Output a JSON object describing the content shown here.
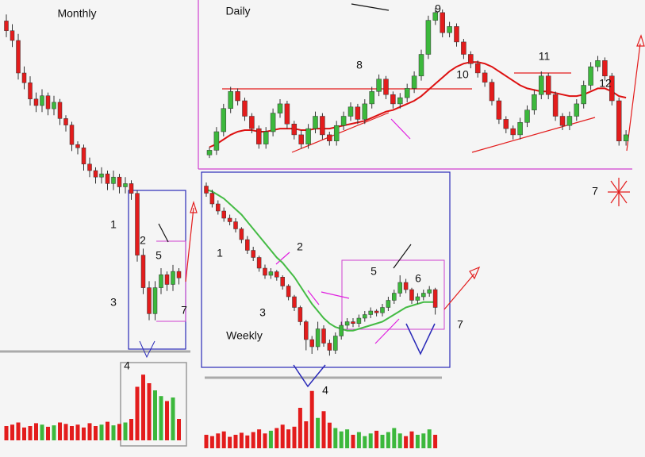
{
  "chart_data": [
    {
      "type": "candlestick",
      "title": "Monthly",
      "ylim": [
        0,
        100
      ],
      "volume_lim": [
        0,
        100
      ],
      "up_color": "#3cb83c",
      "down_color": "#e31c1c",
      "ohlc": [
        [
          96,
          98,
          91,
          93
        ],
        [
          93,
          95,
          88,
          90
        ],
        [
          90,
          92,
          78,
          80
        ],
        [
          80,
          82,
          75,
          77
        ],
        [
          77,
          79,
          70,
          72
        ],
        [
          72,
          74,
          68,
          70
        ],
        [
          70,
          75,
          68,
          73
        ],
        [
          73,
          74,
          67,
          69
        ],
        [
          69,
          73,
          67,
          71
        ],
        [
          71,
          72,
          64,
          66
        ],
        [
          66,
          67,
          62,
          64
        ],
        [
          64,
          65,
          56,
          58
        ],
        [
          58,
          59,
          55,
          57
        ],
        [
          57,
          58,
          50,
          52
        ],
        [
          52,
          54,
          48,
          50
        ],
        [
          50,
          51,
          46,
          48
        ],
        [
          48,
          51,
          46,
          49
        ],
        [
          49,
          50,
          44,
          46
        ],
        [
          46,
          50,
          44,
          48
        ],
        [
          48,
          49,
          43,
          45
        ],
        [
          45,
          48,
          43,
          46
        ],
        [
          46,
          47,
          41,
          43
        ],
        [
          43,
          44,
          22,
          24
        ],
        [
          24,
          26,
          12,
          14
        ],
        [
          14,
          16,
          4,
          6
        ],
        [
          6,
          16,
          4,
          14
        ],
        [
          14,
          20,
          12,
          18
        ],
        [
          18,
          19,
          13,
          15
        ],
        [
          15,
          21,
          13,
          19
        ],
        [
          19,
          20,
          15,
          17
        ]
      ],
      "volume": [
        20,
        22,
        25,
        18,
        20,
        24,
        22,
        19,
        21,
        25,
        23,
        20,
        22,
        18,
        24,
        20,
        22,
        26,
        21,
        23,
        25,
        30,
        75,
        92,
        80,
        70,
        62,
        55,
        60,
        30
      ],
      "annotations": [
        "1",
        "2",
        "3",
        "4",
        "5",
        "7"
      ]
    },
    {
      "type": "candlestick",
      "title": "Weekly",
      "ylim": [
        0,
        100
      ],
      "volume_lim": [
        0,
        100
      ],
      "up_color": "#3cb83c",
      "down_color": "#e31c1c",
      "ma_color": "#44bb44",
      "ohlc": [
        [
          98,
          100,
          92,
          94
        ],
        [
          94,
          96,
          86,
          88
        ],
        [
          88,
          90,
          82,
          84
        ],
        [
          84,
          86,
          78,
          80
        ],
        [
          80,
          82,
          76,
          78
        ],
        [
          78,
          80,
          72,
          74
        ],
        [
          74,
          75,
          66,
          68
        ],
        [
          68,
          70,
          60,
          62
        ],
        [
          62,
          64,
          56,
          58
        ],
        [
          58,
          59,
          50,
          52
        ],
        [
          52,
          54,
          46,
          48
        ],
        [
          48,
          52,
          46,
          50
        ],
        [
          50,
          51,
          45,
          47
        ],
        [
          47,
          48,
          40,
          42
        ],
        [
          42,
          43,
          34,
          36
        ],
        [
          36,
          37,
          28,
          30
        ],
        [
          30,
          31,
          20,
          22
        ],
        [
          22,
          23,
          6,
          12
        ],
        [
          12,
          14,
          4,
          8
        ],
        [
          8,
          22,
          6,
          18
        ],
        [
          18,
          20,
          8,
          10
        ],
        [
          10,
          12,
          3,
          6
        ],
        [
          6,
          16,
          4,
          14
        ],
        [
          14,
          22,
          12,
          20
        ],
        [
          20,
          24,
          18,
          22
        ],
        [
          22,
          24,
          19,
          21
        ],
        [
          21,
          26,
          19,
          24
        ],
        [
          24,
          28,
          22,
          26
        ],
        [
          26,
          30,
          24,
          28
        ],
        [
          28,
          29,
          25,
          27
        ],
        [
          27,
          32,
          25,
          30
        ],
        [
          30,
          36,
          28,
          34
        ],
        [
          34,
          40,
          32,
          38
        ],
        [
          38,
          48,
          36,
          44
        ],
        [
          44,
          46,
          38,
          40
        ],
        [
          40,
          41,
          32,
          34
        ],
        [
          34,
          38,
          32,
          36
        ],
        [
          36,
          40,
          34,
          38
        ],
        [
          38,
          42,
          36,
          40
        ],
        [
          40,
          41,
          26,
          30
        ]
      ],
      "ma": [
        96,
        95,
        93,
        91,
        88,
        85,
        82,
        78,
        74,
        70,
        66,
        62,
        58,
        55,
        51,
        47,
        42,
        37,
        32,
        28,
        24,
        21,
        19,
        18,
        17,
        17,
        18,
        19,
        20,
        21,
        22,
        24,
        26,
        28,
        30,
        31,
        32,
        33,
        33,
        33
      ],
      "volume": [
        20,
        18,
        22,
        25,
        17,
        20,
        23,
        19,
        24,
        28,
        22,
        26,
        30,
        35,
        28,
        32,
        60,
        40,
        85,
        45,
        55,
        38,
        30,
        25,
        28,
        20,
        24,
        18,
        22,
        26,
        20,
        24,
        30,
        22,
        18,
        25,
        20,
        22,
        28,
        20
      ],
      "annotations": [
        "1",
        "2",
        "3",
        "4",
        "5",
        "6",
        "7"
      ]
    },
    {
      "type": "candlestick",
      "title": "Daily",
      "ylim": [
        0,
        100
      ],
      "up_color": "#3cb83c",
      "down_color": "#e31c1c",
      "ma_color": "#dd1111",
      "ohlc": [
        [
          5,
          10,
          3,
          8
        ],
        [
          8,
          23,
          5,
          20
        ],
        [
          20,
          38,
          17,
          35
        ],
        [
          35,
          49,
          32,
          46
        ],
        [
          46,
          48,
          37,
          40
        ],
        [
          40,
          42,
          27,
          30
        ],
        [
          30,
          32,
          19,
          22
        ],
        [
          22,
          24,
          9,
          12
        ],
        [
          12,
          23,
          9,
          20
        ],
        [
          20,
          35,
          17,
          32
        ],
        [
          32,
          41,
          29,
          38
        ],
        [
          38,
          40,
          22,
          25
        ],
        [
          25,
          27,
          15,
          18
        ],
        [
          18,
          21,
          9,
          12
        ],
        [
          12,
          25,
          9,
          22
        ],
        [
          22,
          33,
          19,
          30
        ],
        [
          30,
          32,
          15,
          18
        ],
        [
          18,
          20,
          11,
          14
        ],
        [
          14,
          27,
          11,
          24
        ],
        [
          24,
          33,
          21,
          30
        ],
        [
          30,
          39,
          27,
          36
        ],
        [
          36,
          38,
          25,
          28
        ],
        [
          28,
          41,
          25,
          38
        ],
        [
          38,
          49,
          35,
          46
        ],
        [
          46,
          57,
          43,
          54
        ],
        [
          54,
          56,
          41,
          44
        ],
        [
          44,
          46,
          35,
          38
        ],
        [
          38,
          45,
          35,
          42
        ],
        [
          42,
          51,
          39,
          48
        ],
        [
          48,
          59,
          45,
          56
        ],
        [
          56,
          73,
          53,
          70
        ],
        [
          70,
          95,
          67,
          92
        ],
        [
          92,
          100,
          89,
          97
        ],
        [
          97,
          99,
          81,
          84
        ],
        [
          84,
          91,
          81,
          88
        ],
        [
          88,
          90,
          75,
          78
        ],
        [
          78,
          80,
          67,
          70
        ],
        [
          70,
          72,
          61,
          64
        ],
        [
          64,
          66,
          55,
          58
        ],
        [
          58,
          60,
          49,
          52
        ],
        [
          52,
          54,
          37,
          40
        ],
        [
          40,
          42,
          25,
          28
        ],
        [
          28,
          30,
          19,
          22
        ],
        [
          22,
          24,
          15,
          18
        ],
        [
          18,
          29,
          15,
          26
        ],
        [
          26,
          37,
          23,
          34
        ],
        [
          34,
          47,
          31,
          44
        ],
        [
          44,
          59,
          41,
          56
        ],
        [
          56,
          58,
          41,
          44
        ],
        [
          44,
          46,
          27,
          30
        ],
        [
          30,
          32,
          21,
          24
        ],
        [
          24,
          33,
          21,
          30
        ],
        [
          30,
          41,
          27,
          38
        ],
        [
          38,
          53,
          35,
          50
        ],
        [
          50,
          65,
          47,
          62
        ],
        [
          62,
          69,
          59,
          66
        ],
        [
          66,
          68,
          53,
          56
        ],
        [
          56,
          58,
          37,
          40
        ],
        [
          40,
          42,
          11,
          14
        ],
        [
          14,
          21,
          11,
          18
        ]
      ],
      "ma": [
        10,
        12,
        15,
        18,
        20,
        21,
        21,
        20,
        20,
        21,
        22,
        22,
        22,
        21,
        21,
        22,
        22,
        22,
        23,
        24,
        25,
        26,
        27,
        29,
        31,
        33,
        34,
        36,
        38,
        40,
        43,
        47,
        51,
        55,
        59,
        62,
        64,
        65,
        65,
        64,
        62,
        59,
        56,
        53,
        50,
        48,
        47,
        46,
        46,
        45,
        44,
        43,
        43,
        44,
        46,
        48,
        48,
        46,
        43,
        42
      ],
      "annotations": [
        "9",
        "8",
        "10",
        "11",
        "12",
        "7"
      ]
    }
  ]
}
